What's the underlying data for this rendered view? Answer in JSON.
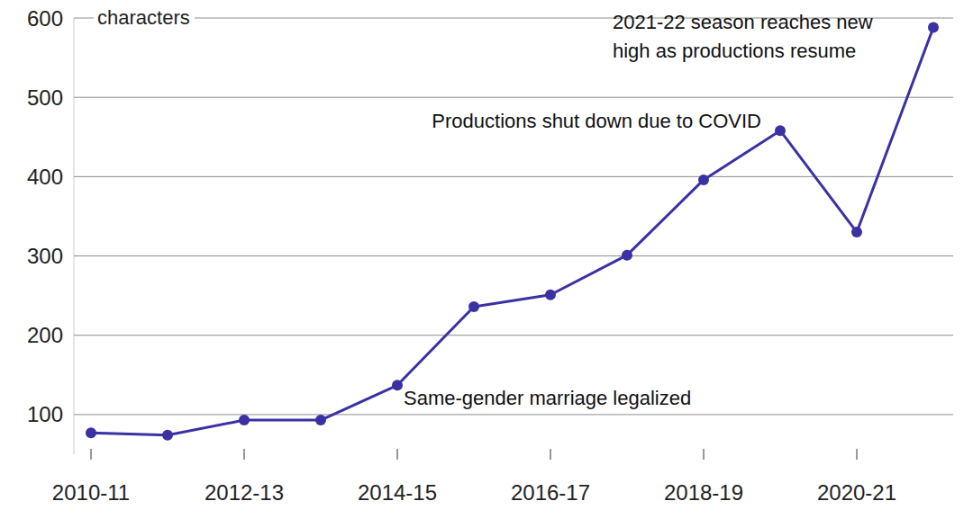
{
  "chart_data": {
    "type": "line",
    "y_label": "characters",
    "categories": [
      "2010-11",
      null,
      "2012-13",
      null,
      "2014-15",
      null,
      "2016-17",
      null,
      "2018-19",
      null,
      "2020-21",
      null
    ],
    "values": [
      77,
      74,
      93,
      93,
      137,
      236,
      251,
      301,
      396,
      458,
      330,
      588
    ],
    "color": "#3a31a3",
    "ylim": [
      50,
      600
    ],
    "yticks": [
      100,
      200,
      300,
      400,
      500,
      600
    ],
    "grid": true,
    "marker": "circle",
    "annotations": [
      "2021-22 season reaches new\nhigh as productions resume",
      "Productions shut down due to COVID",
      "Same-gender marriage legalized"
    ]
  }
}
